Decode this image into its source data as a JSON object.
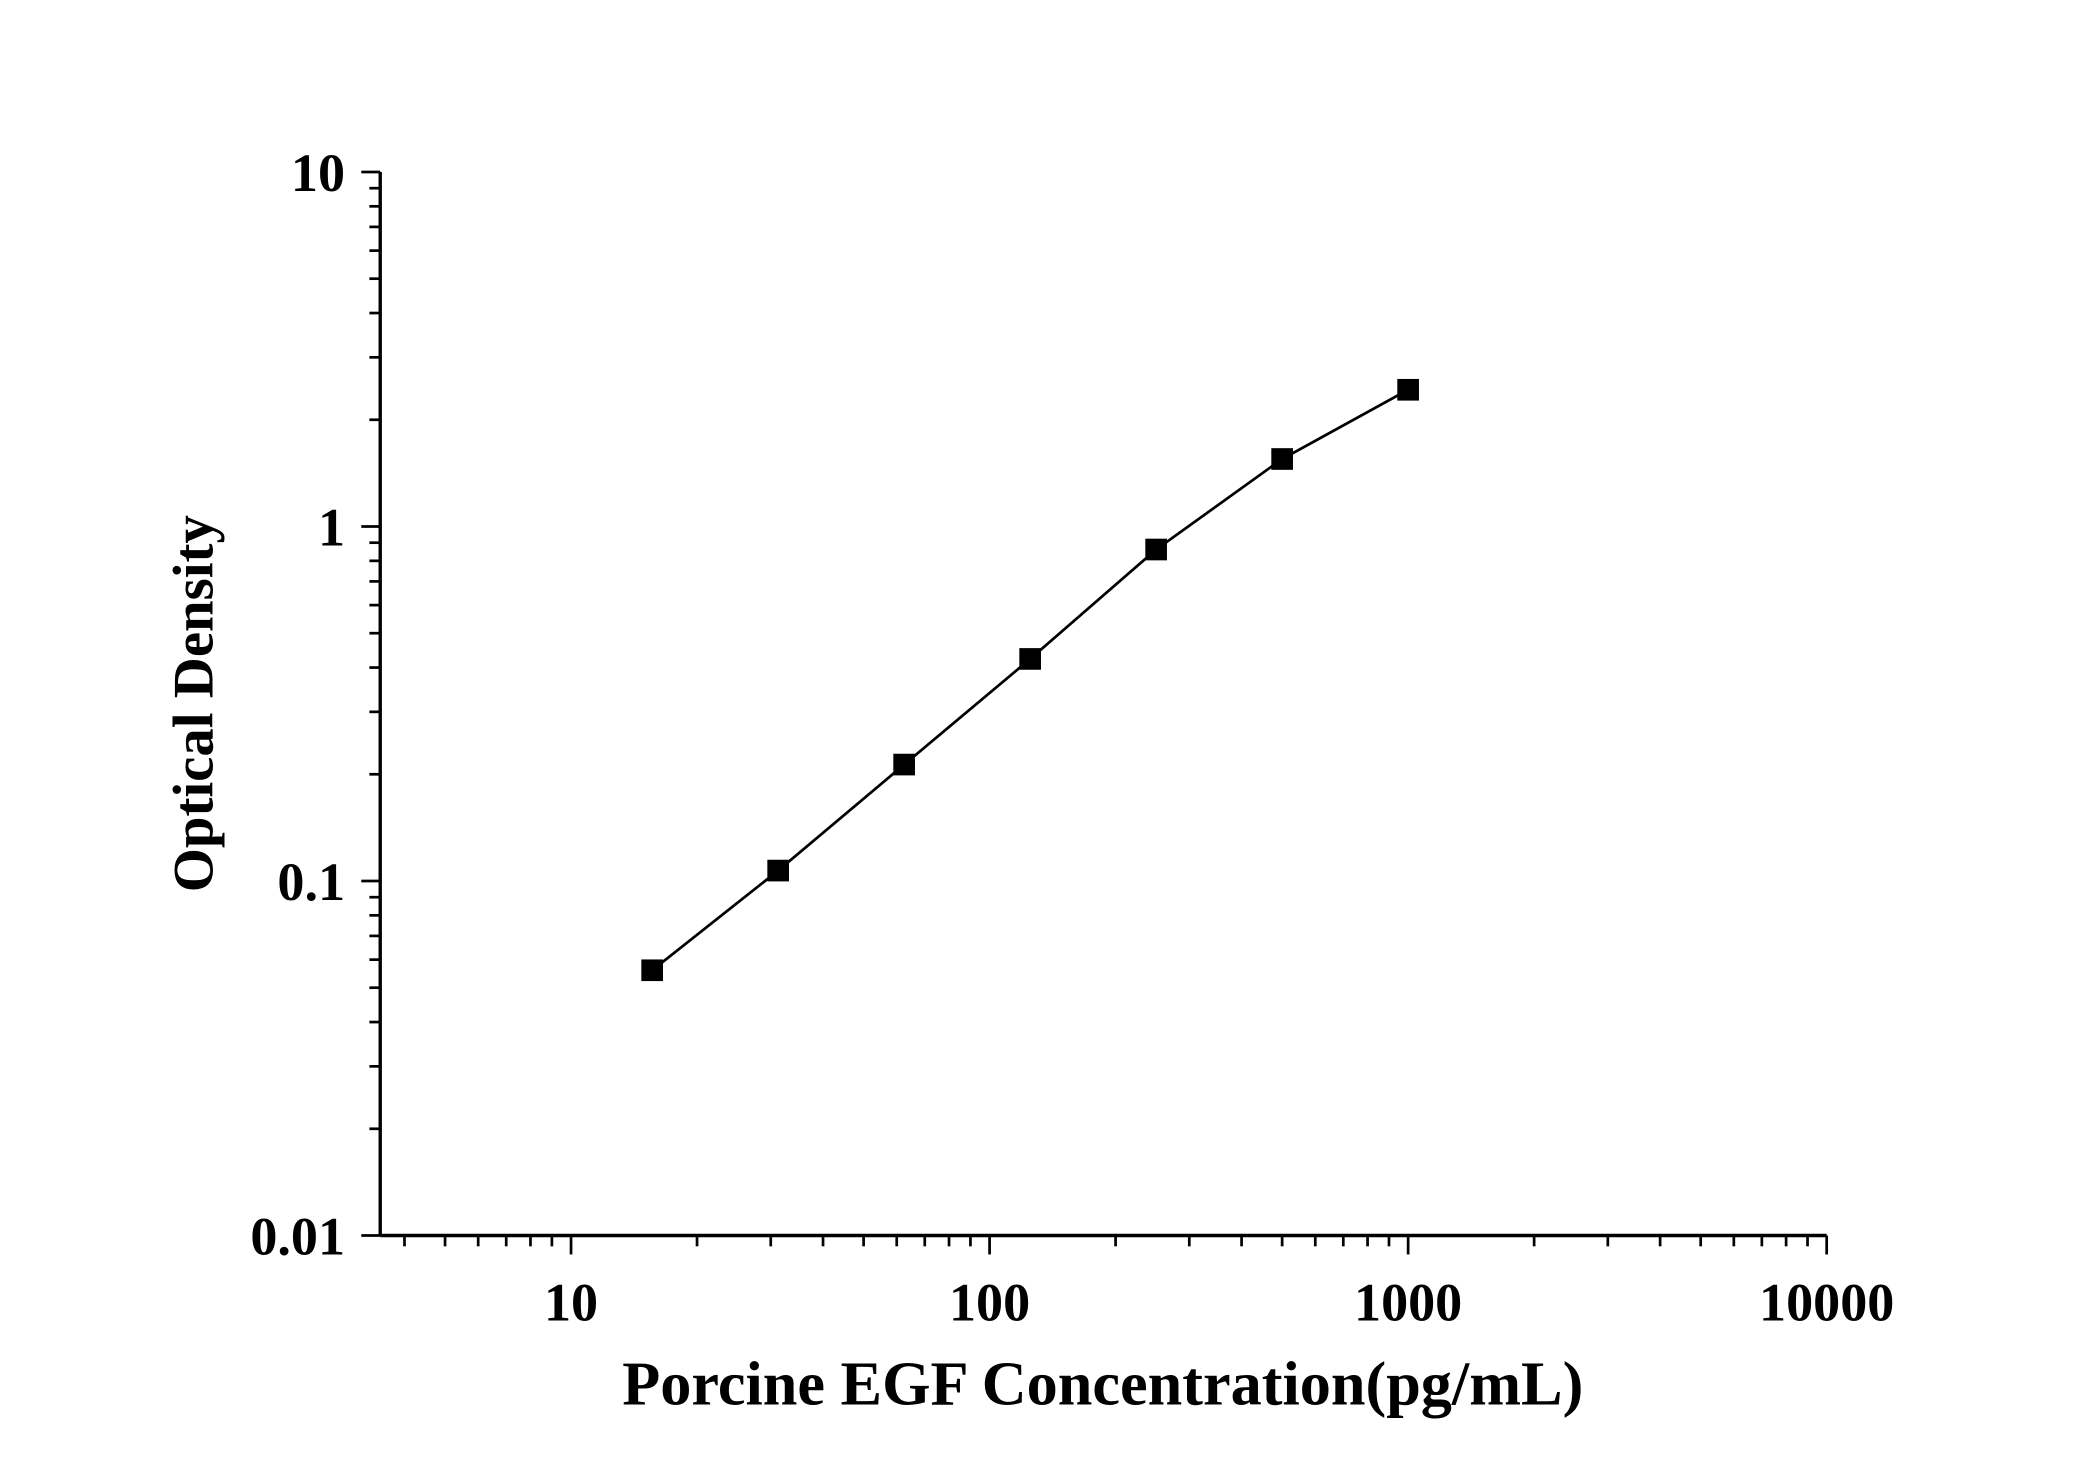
{
  "chart_data": {
    "type": "line",
    "title": "",
    "xlabel": "Porcine EGF Concentration(pg/mL)",
    "ylabel": "Optical Density",
    "x_scale": "log",
    "y_scale": "log",
    "xlim": [
      3.5,
      10000
    ],
    "ylim": [
      0.01,
      10
    ],
    "x_ticks": [
      "10",
      "100",
      "1000",
      "10000"
    ],
    "y_ticks": [
      "0.01",
      "0.1",
      "1",
      "10"
    ],
    "grid": false,
    "marker": "square",
    "color": "#000000",
    "series": [
      {
        "x": [
          15.625,
          31.25,
          62.5,
          125,
          250,
          500,
          1000
        ],
        "y": [
          0.056,
          0.107,
          0.213,
          0.423,
          0.861,
          1.55,
          2.43
        ]
      }
    ]
  }
}
